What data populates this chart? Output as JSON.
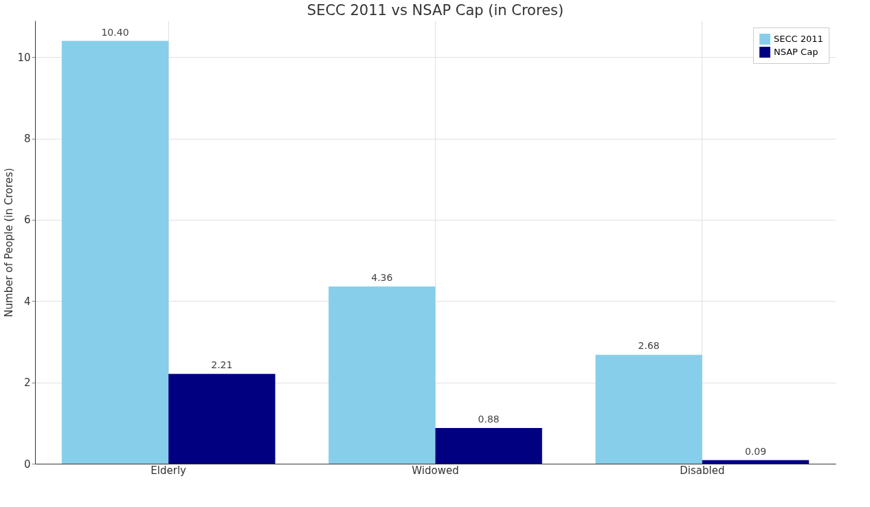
{
  "chart_data": {
    "type": "bar",
    "title": "SECC 2011 vs NSAP Cap (in Crores)",
    "ylabel": "Number of People (in Crores)",
    "categories": [
      "Elderly",
      "Widowed",
      "Disabled"
    ],
    "series": [
      {
        "name": "SECC 2011",
        "color": "#87ceeb",
        "values": [
          10.4,
          4.36,
          2.68
        ],
        "value_labels": [
          "10.40",
          "4.36",
          "2.68"
        ]
      },
      {
        "name": "NSAP Cap",
        "color": "#000080",
        "values": [
          2.21,
          0.88,
          0.09
        ],
        "value_labels": [
          "2.21",
          "0.88",
          "0.09"
        ]
      }
    ],
    "ylim": [
      0,
      10.9
    ],
    "yticks": [
      0,
      2,
      4,
      6,
      8,
      10
    ],
    "grid": true,
    "legend": "top right"
  }
}
